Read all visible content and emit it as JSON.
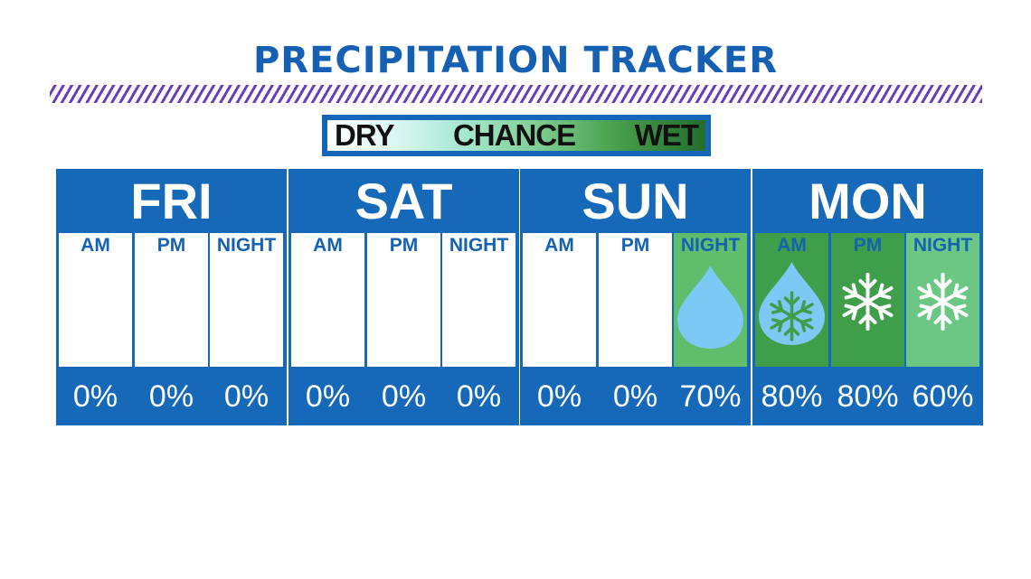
{
  "title": "PRECIPITATION TRACKER",
  "legend": {
    "dry": "DRY",
    "chance": "CHANCE",
    "wet": "WET"
  },
  "colors": {
    "brand_blue": "#1569b8",
    "chance_green": "#5fbd6c",
    "wet_green": "#3f9e49",
    "light_green": "#6cc784",
    "stripe_purple": "#6a3dbd",
    "raindrop": "#7cc9f5"
  },
  "days": [
    {
      "name": "FRI",
      "periods": [
        {
          "label": "AM",
          "percent": "0%",
          "icon": ""
        },
        {
          "label": "PM",
          "percent": "0%",
          "icon": ""
        },
        {
          "label": "NIGHT",
          "percent": "0%",
          "icon": ""
        }
      ]
    },
    {
      "name": "SAT",
      "periods": [
        {
          "label": "AM",
          "percent": "0%",
          "icon": ""
        },
        {
          "label": "PM",
          "percent": "0%",
          "icon": ""
        },
        {
          "label": "NIGHT",
          "percent": "0%",
          "icon": ""
        }
      ]
    },
    {
      "name": "SUN",
      "periods": [
        {
          "label": "AM",
          "percent": "0%",
          "icon": ""
        },
        {
          "label": "PM",
          "percent": "0%",
          "icon": ""
        },
        {
          "label": "NIGHT",
          "percent": "70%",
          "icon": "raindrop-icon"
        }
      ]
    },
    {
      "name": "MON",
      "periods": [
        {
          "label": "AM",
          "percent": "80%",
          "icon": "raindrop-snowflake-icon"
        },
        {
          "label": "PM",
          "percent": "80%",
          "icon": "snowflake-icon"
        },
        {
          "label": "NIGHT",
          "percent": "60%",
          "icon": "snowflake-icon"
        }
      ]
    }
  ]
}
